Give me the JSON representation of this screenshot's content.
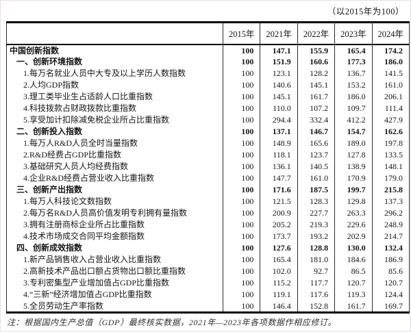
{
  "chart_data": {
    "type": "table",
    "annotation": "（以2015年为100）",
    "columns": [
      "",
      "2015年",
      "2021年",
      "2022年",
      "2023年",
      "2024年"
    ],
    "rows": [
      {
        "label": "中国创新指数",
        "indent": 0,
        "bold": true,
        "values": [
          "100",
          "147.1",
          "155.9",
          "165.4",
          "174.2"
        ]
      },
      {
        "label": "一、创新环境指数",
        "indent": 1,
        "bold": true,
        "values": [
          "100",
          "151.9",
          "160.6",
          "177.3",
          "186.0"
        ]
      },
      {
        "label": "1.每万名就业人员中大专及以上学历人数指数",
        "indent": 2,
        "bold": false,
        "values": [
          "100",
          "123.1",
          "128.2",
          "136.7",
          "141.5"
        ]
      },
      {
        "label": "2.人均GDP指数",
        "indent": 2,
        "bold": false,
        "values": [
          "100",
          "140.6",
          "145.1",
          "153.2",
          "161.0"
        ]
      },
      {
        "label": "3.理工类毕业生占适龄人口比重指数",
        "indent": 2,
        "bold": false,
        "values": [
          "100",
          "145.1",
          "161.7",
          "186.0",
          "206.1"
        ]
      },
      {
        "label": "4.科技拨款占财政拨款比重指数",
        "indent": 2,
        "bold": false,
        "values": [
          "100",
          "110.0",
          "107.2",
          "109.7",
          "111.4"
        ]
      },
      {
        "label": "5.享受加计扣除减免税企业所占比重指数",
        "indent": 2,
        "bold": false,
        "values": [
          "100",
          "294.4",
          "332.4",
          "412.2",
          "427.9"
        ]
      },
      {
        "label": "二、创新投入指数",
        "indent": 1,
        "bold": true,
        "values": [
          "100",
          "137.1",
          "146.7",
          "154.7",
          "162.6"
        ]
      },
      {
        "label": "1.每万人R&D人员全时当量指数",
        "indent": 2,
        "bold": false,
        "values": [
          "100",
          "148.9",
          "165.6",
          "189.0",
          "197.8"
        ]
      },
      {
        "label": "2.R&D经费占GDP比重指数",
        "indent": 2,
        "bold": false,
        "values": [
          "100",
          "118.1",
          "123.7",
          "127.8",
          "133.5"
        ]
      },
      {
        "label": "3.基础研究人员人均经费指数",
        "indent": 2,
        "bold": false,
        "values": [
          "100",
          "136.1",
          "140.5",
          "138.9",
          "148.1"
        ]
      },
      {
        "label": "4.企业R&D经费占营业收入比重指数",
        "indent": 2,
        "bold": false,
        "values": [
          "100",
          "147.7",
          "161.0",
          "170.9",
          "179.0"
        ]
      },
      {
        "label": "三、创新产出指数",
        "indent": 1,
        "bold": true,
        "values": [
          "100",
          "171.6",
          "187.5",
          "199.7",
          "215.8"
        ]
      },
      {
        "label": "1.每万人科技论文数指数",
        "indent": 2,
        "bold": false,
        "values": [
          "100",
          "121.5",
          "128.3",
          "129.8",
          "137.3"
        ]
      },
      {
        "label": "2.每万名R&D人员高价值发明专利拥有量指数",
        "indent": 2,
        "bold": false,
        "values": [
          "100",
          "200.9",
          "227.7",
          "263.3",
          "296.2"
        ]
      },
      {
        "label": "3.拥有注册商标企业所占比重指数",
        "indent": 2,
        "bold": false,
        "values": [
          "100",
          "205.2",
          "219.3",
          "229.6",
          "248.9"
        ]
      },
      {
        "label": "4.技术市场成交合同平均金额指数",
        "indent": 2,
        "bold": false,
        "values": [
          "100",
          "173.7",
          "193.2",
          "202.9",
          "214.7"
        ]
      },
      {
        "label": "四、创新成效指数",
        "indent": 1,
        "bold": true,
        "values": [
          "100",
          "127.6",
          "128.8",
          "130.0",
          "132.4"
        ]
      },
      {
        "label": "1.新产品销售收入占营业收入比重指数",
        "indent": 2,
        "bold": false,
        "values": [
          "100",
          "165.4",
          "181.0",
          "184.6",
          "186.9"
        ]
      },
      {
        "label": "2.高新技术产品出口额占货物出口额比重指数",
        "indent": 2,
        "bold": false,
        "values": [
          "100",
          "102.0",
          "92.7",
          "86.5",
          "85.6"
        ]
      },
      {
        "label": "3.专利密集型产业增加值占GDP比重指数",
        "indent": 2,
        "bold": false,
        "values": [
          "100",
          "115.2",
          "117.7",
          "120.7",
          "120.7"
        ]
      },
      {
        "label": "4.“三新”经济增加值占GDP比重指数",
        "indent": 2,
        "bold": false,
        "values": [
          "100",
          "119.1",
          "117.6",
          "119.3",
          "124.4"
        ]
      },
      {
        "label": "5.全员劳动生产率指数",
        "indent": 2,
        "bold": false,
        "values": [
          "100",
          "146.4",
          "152.8",
          "161.7",
          "169.7"
        ]
      }
    ],
    "footnote": "注：根据国内生产总值（GDP）最终核实数据，2021年—2023年各项数据作相应修订。"
  }
}
